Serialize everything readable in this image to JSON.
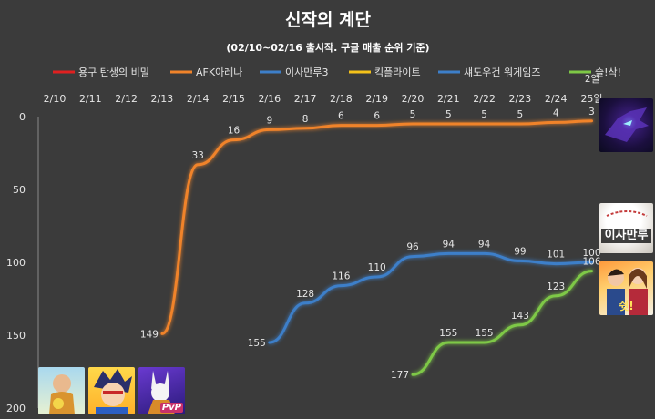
{
  "chart_data": {
    "type": "line",
    "title": "신작의 계단",
    "subtitle": "(02/10~02/16 출시작. 구글 매출 순위 기준)",
    "x": [
      "2/10",
      "2/11",
      "2/12",
      "2/13",
      "2/14",
      "2/15",
      "2/16",
      "2/17",
      "2/18",
      "2/19",
      "2/20",
      "2/21",
      "2/22",
      "2/23",
      "2/24",
      "25일"
    ],
    "ylim": [
      200,
      0
    ],
    "y_reversed": true,
    "yticks": [
      0,
      50,
      100,
      150,
      200
    ],
    "grid": false,
    "legend_position": "top",
    "series": [
      {
        "name": "용구 탄생의 비밀",
        "color": "#e02020",
        "values": [
          null,
          null,
          null,
          null,
          null,
          null,
          null,
          null,
          null,
          null,
          null,
          null,
          null,
          null,
          null,
          null
        ]
      },
      {
        "name": "AFK아레나",
        "color": "#f0832a",
        "values": [
          null,
          null,
          null,
          149,
          33,
          16,
          9,
          8,
          6,
          6,
          5,
          5,
          5,
          5,
          4,
          3
        ]
      },
      {
        "name": "이사만루3",
        "color": "#3d7fc9",
        "values": [
          null,
          null,
          null,
          null,
          null,
          null,
          null,
          null,
          null,
          null,
          null,
          null,
          null,
          null,
          null,
          null
        ]
      },
      {
        "name": "킥플라이트",
        "color": "#f4c21a",
        "values": [
          null,
          null,
          null,
          null,
          null,
          null,
          null,
          null,
          null,
          null,
          null,
          null,
          null,
          null,
          null,
          null
        ]
      },
      {
        "name": "섀도우건 워게임즈",
        "color": "#3d7fc9",
        "values": [
          null,
          null,
          null,
          null,
          null,
          null,
          155,
          128,
          116,
          110,
          96,
          94,
          94,
          99,
          101,
          100
        ]
      },
      {
        "name": "슬!삭!",
        "color": "#7ec846",
        "values": [
          null,
          null,
          null,
          null,
          null,
          null,
          null,
          null,
          null,
          null,
          177,
          155,
          155,
          143,
          123,
          106
        ]
      }
    ],
    "annotations": [
      "2일"
    ]
  },
  "thumbnails": {
    "top_right": {
      "icon": "afk-arena-dragon-icon"
    },
    "mid_right": {
      "icon": "baseball-icon",
      "text": "이사만루"
    },
    "lower_right": {
      "icon": "duo-characters-icon",
      "text": "쉿!"
    },
    "bottom_left": [
      {
        "icon": "monk-character-icon"
      },
      {
        "icon": "anime-hero-icon"
      },
      {
        "icon": "rabbit-warrior-pvp-icon",
        "text": "PvP"
      }
    ]
  }
}
